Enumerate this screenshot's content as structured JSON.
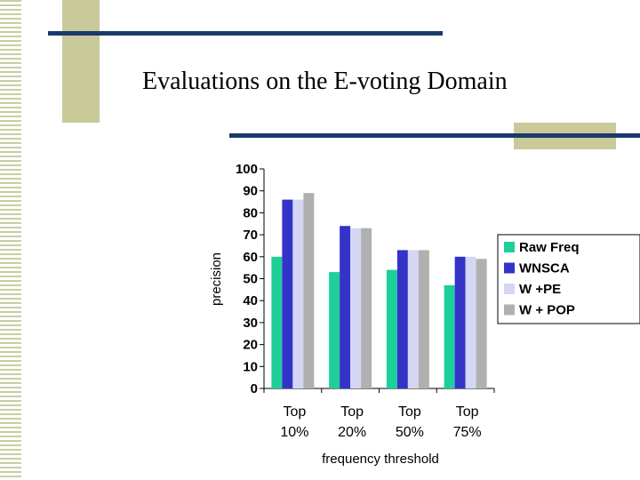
{
  "slide": {
    "title": "Evaluations  on the E-voting Domain"
  },
  "chart_data": {
    "type": "bar",
    "categories": [
      [
        "Top",
        "10%"
      ],
      [
        "Top",
        "20%"
      ],
      [
        "Top",
        "50%"
      ],
      [
        "Top",
        "75%"
      ]
    ],
    "series": [
      {
        "name": "Raw Freq",
        "values": [
          60,
          53,
          54,
          47
        ],
        "color": "#1fcf9a"
      },
      {
        "name": "WNSCA",
        "values": [
          86,
          74,
          63,
          60
        ],
        "color": "#3333c8"
      },
      {
        "name": "W +PE",
        "values": [
          86,
          73,
          63,
          60
        ],
        "color": "#d4d6f4"
      },
      {
        "name": "W + POP",
        "values": [
          89,
          73,
          63,
          59
        ],
        "color": "#b0b0b0"
      }
    ],
    "ylim": [
      0,
      100
    ],
    "yticks": [
      0,
      10,
      20,
      30,
      40,
      50,
      60,
      70,
      80,
      90,
      100
    ],
    "xlabel": "frequency threshold",
    "ylabel": "precision",
    "legend_position": "right",
    "grid": false
  }
}
